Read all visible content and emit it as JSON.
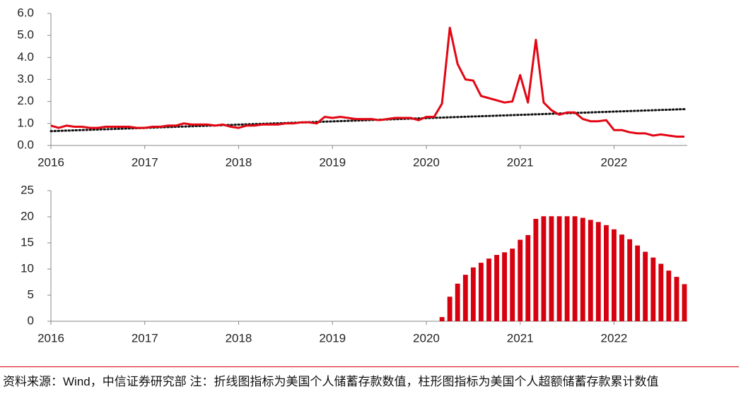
{
  "chart_data": [
    {
      "type": "line",
      "color": "#e30613",
      "x": [
        2016,
        2016.083,
        2016.167,
        2016.25,
        2016.333,
        2016.417,
        2016.5,
        2016.583,
        2016.667,
        2016.75,
        2016.833,
        2016.917,
        2017,
        2017.083,
        2017.167,
        2017.25,
        2017.333,
        2017.417,
        2017.5,
        2017.583,
        2017.667,
        2017.75,
        2017.833,
        2017.917,
        2018,
        2018.083,
        2018.167,
        2018.25,
        2018.333,
        2018.417,
        2018.5,
        2018.583,
        2018.667,
        2018.75,
        2018.833,
        2018.917,
        2019,
        2019.083,
        2019.167,
        2019.25,
        2019.333,
        2019.417,
        2019.5,
        2019.583,
        2019.667,
        2019.75,
        2019.833,
        2019.917,
        2020,
        2020.083,
        2020.167,
        2020.25,
        2020.333,
        2020.417,
        2020.5,
        2020.583,
        2020.667,
        2020.75,
        2020.833,
        2020.917,
        2021,
        2021.083,
        2021.167,
        2021.25,
        2021.333,
        2021.417,
        2021.5,
        2021.583,
        2021.667,
        2021.75,
        2021.833,
        2021.917,
        2022,
        2022.083,
        2022.167,
        2022.25,
        2022.333,
        2022.417,
        2022.5,
        2022.583,
        2022.667,
        2022.75
      ],
      "values": [
        0.9,
        0.8,
        0.9,
        0.85,
        0.85,
        0.8,
        0.8,
        0.85,
        0.85,
        0.85,
        0.85,
        0.8,
        0.8,
        0.85,
        0.85,
        0.9,
        0.9,
        1.0,
        0.95,
        0.95,
        0.95,
        0.9,
        0.95,
        0.85,
        0.8,
        0.9,
        0.9,
        0.95,
        0.95,
        0.95,
        1.0,
        1.0,
        1.05,
        1.05,
        1.0,
        1.3,
        1.25,
        1.3,
        1.25,
        1.2,
        1.2,
        1.2,
        1.15,
        1.2,
        1.25,
        1.25,
        1.25,
        1.15,
        1.3,
        1.3,
        1.9,
        5.35,
        3.7,
        3.0,
        2.95,
        2.25,
        2.15,
        2.05,
        1.95,
        2.0,
        3.2,
        1.95,
        4.8,
        1.95,
        1.6,
        1.4,
        1.5,
        1.5,
        1.2,
        1.1,
        1.1,
        1.15,
        0.7,
        0.7,
        0.6,
        0.55,
        0.55,
        0.45,
        0.5,
        0.45,
        0.4,
        0.4
      ],
      "trend": {
        "x": [
          2016,
          2022.75
        ],
        "values": [
          0.65,
          1.65
        ],
        "color": "#111111"
      },
      "xlim": [
        2016,
        2022.78
      ],
      "xticks": [
        2016,
        2017,
        2018,
        2019,
        2020,
        2021,
        2022
      ],
      "ylim": [
        0,
        6
      ],
      "yticks": [
        {
          "value": 0,
          "label": "0.0"
        },
        {
          "value": 1,
          "label": "1.0"
        },
        {
          "value": 2,
          "label": "2.0"
        },
        {
          "value": 3,
          "label": "3.0"
        },
        {
          "value": 4,
          "label": "4.0"
        },
        {
          "value": 5,
          "label": "5.0"
        },
        {
          "value": 6,
          "label": "6.0"
        }
      ]
    },
    {
      "type": "bar",
      "color": "#d7000f",
      "x": [
        2020.167,
        2020.25,
        2020.333,
        2020.417,
        2020.5,
        2020.583,
        2020.667,
        2020.75,
        2020.833,
        2020.917,
        2021,
        2021.083,
        2021.167,
        2021.25,
        2021.333,
        2021.417,
        2021.5,
        2021.583,
        2021.667,
        2021.75,
        2021.833,
        2021.917,
        2022,
        2022.083,
        2022.167,
        2022.25,
        2022.333,
        2022.417,
        2022.5,
        2022.583,
        2022.667,
        2022.75
      ],
      "values": [
        0.8,
        4.7,
        7.2,
        8.9,
        10.3,
        11.2,
        12.0,
        12.7,
        13.2,
        13.9,
        15.6,
        16.5,
        19.6,
        20.1,
        20.1,
        20.1,
        20.1,
        20.1,
        19.8,
        19.4,
        19.0,
        18.4,
        17.6,
        16.6,
        15.7,
        14.5,
        13.3,
        12.2,
        11.0,
        9.7,
        8.5,
        7.1
      ],
      "xlim": [
        2016,
        2022.78
      ],
      "xticks": [
        2016,
        2017,
        2018,
        2019,
        2020,
        2021,
        2022
      ],
      "ylim": [
        0,
        25
      ],
      "yticks": [
        0,
        5,
        10,
        15,
        20,
        25
      ]
    }
  ],
  "note": "资料来源：Wind，中信证券研究部  注：折线图指标为美国个人储蓄存款数值，柱形图指标为美国个人超额储蓄存款累计数值"
}
